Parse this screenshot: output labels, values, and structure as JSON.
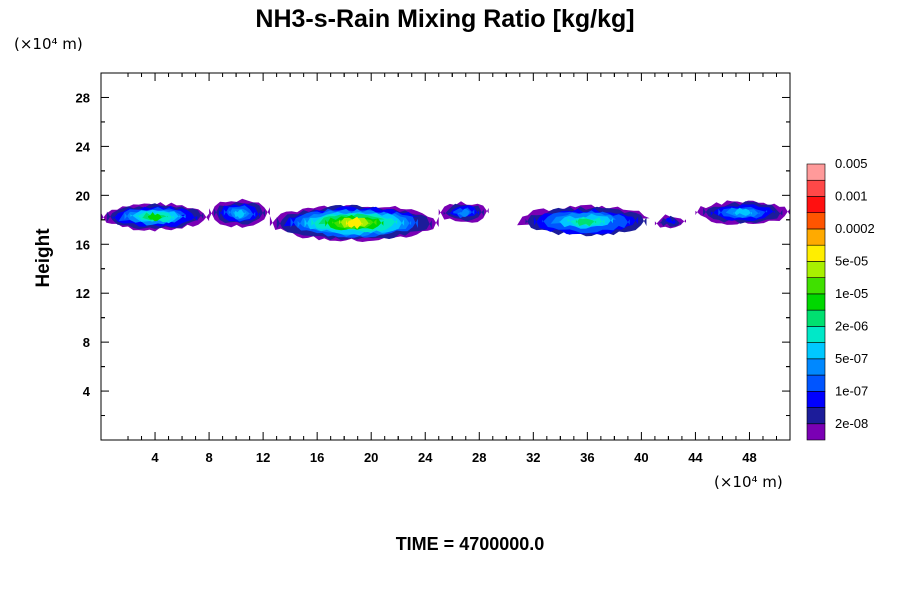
{
  "chart_data": {
    "type": "heatmap",
    "title": "NH3-s-Rain Mixing Ratio [kg/kg]",
    "ylabel": "Height",
    "x_unit": "(×10⁴ m)",
    "y_unit": "(×10⁴ m)",
    "xlim": [
      0,
      51
    ],
    "ylim": [
      0,
      30
    ],
    "x_ticks": [
      "4",
      "8",
      "12",
      "16",
      "20",
      "24",
      "28",
      "32",
      "36",
      "40",
      "44",
      "48"
    ],
    "y_ticks": [
      "4",
      "8",
      "12",
      "16",
      "20",
      "24",
      "28"
    ],
    "footer": "TIME = 4700000.0",
    "colorbar": {
      "colors": [
        "#7a00b4",
        "#1c1c9a",
        "#0000ff",
        "#0055ff",
        "#0088ff",
        "#00c8ff",
        "#00e8c8",
        "#00e070",
        "#00d800",
        "#40e000",
        "#a8f000",
        "#ffee00",
        "#ffaa00",
        "#ff5500",
        "#ff1010",
        "#ff4848",
        "#ff9a9a"
      ],
      "labels": [
        "2e-08",
        "1e-07",
        "5e-07",
        "2e-06",
        "1e-05",
        "5e-05",
        "0.0002",
        "0.001",
        "0.005"
      ]
    },
    "regions": [
      {
        "x0": 0,
        "x1": 8,
        "yb": 17.2,
        "yt": 19.3,
        "level": 8
      },
      {
        "x0": 8,
        "x1": 12.5,
        "yb": 17.5,
        "yt": 19.6,
        "level": 5
      },
      {
        "x0": 12.5,
        "x1": 25,
        "yb": 16.3,
        "yt": 19.2,
        "level": 11
      },
      {
        "x0": 25,
        "x1": 28.7,
        "yb": 17.8,
        "yt": 19.4,
        "level": 4
      },
      {
        "x0": 30.8,
        "x1": 41,
        "yb": 16.6,
        "yt": 19.1,
        "level": 7
      },
      {
        "x0": 41,
        "x1": 43.3,
        "yb": 17.4,
        "yt": 18.3,
        "level": 2
      },
      {
        "x0": 44,
        "x1": 51,
        "yb": 17.7,
        "yt": 19.5,
        "level": 5
      }
    ]
  }
}
